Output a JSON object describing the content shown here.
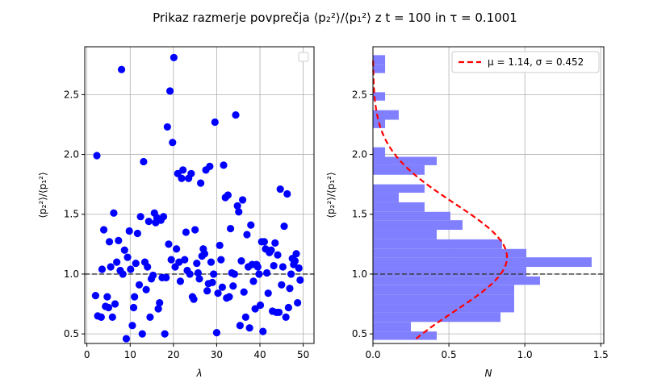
{
  "title": "Prikaz razmerje povprečja ⟨p₂²⟩/⟨p₁²⟩  z t = 100 in τ = 0.1001",
  "chart_data": [
    {
      "type": "scatter",
      "xlabel": "λ",
      "ylabel": "⟨p₂²⟩/⟨p₁²⟩",
      "xlim": [
        -0.5,
        52.5
      ],
      "ylim": [
        0.42,
        2.9
      ],
      "xticks": [
        "0",
        "10",
        "20",
        "30",
        "40",
        "50"
      ],
      "yticks": [
        "0.5",
        "1.0",
        "1.5",
        "2.0",
        "2.5"
      ],
      "grid": true,
      "legend": "top-right (empty box)",
      "reference_line": {
        "y": 1.0,
        "style": "dashed",
        "color": "#333333"
      },
      "marker_color": "#0000ff",
      "points": [
        [
          2.0,
          0.82
        ],
        [
          2.3,
          1.99
        ],
        [
          2.5,
          0.65
        ],
        [
          3.3,
          0.64
        ],
        [
          3.5,
          1.04
        ],
        [
          3.9,
          1.37
        ],
        [
          4.3,
          0.73
        ],
        [
          4.7,
          0.81
        ],
        [
          5.0,
          0.72
        ],
        [
          5.2,
          1.27
        ],
        [
          5.5,
          1.06
        ],
        [
          5.9,
          0.64
        ],
        [
          6.2,
          1.51
        ],
        [
          6.5,
          0.75
        ],
        [
          6.9,
          1.1
        ],
        [
          7.3,
          1.28
        ],
        [
          7.7,
          1.03
        ],
        [
          8.0,
          2.71
        ],
        [
          8.3,
          1.0
        ],
        [
          8.7,
          1.2
        ],
        [
          9.1,
          0.46
        ],
        [
          9.4,
          1.14
        ],
        [
          9.8,
          1.36
        ],
        [
          10.1,
          1.04
        ],
        [
          10.5,
          0.57
        ],
        [
          10.8,
          0.72
        ],
        [
          11.0,
          0.81
        ],
        [
          11.3,
          1.09
        ],
        [
          11.7,
          1.34
        ],
        [
          12.1,
          0.91
        ],
        [
          12.4,
          1.48
        ],
        [
          12.8,
          0.5
        ],
        [
          13.1,
          1.94
        ],
        [
          13.4,
          1.1
        ],
        [
          13.7,
          0.87
        ],
        [
          14.0,
          1.06
        ],
        [
          14.3,
          1.44
        ],
        [
          14.6,
          0.64
        ],
        [
          14.9,
          0.96
        ],
        [
          15.3,
          0.99
        ],
        [
          15.6,
          1.51
        ],
        [
          15.9,
          1.43
        ],
        [
          16.2,
          1.47
        ],
        [
          16.5,
          0.71
        ],
        [
          16.8,
          0.76
        ],
        [
          17.1,
          1.45
        ],
        [
          17.4,
          0.97
        ],
        [
          17.7,
          1.48
        ],
        [
          18.0,
          0.5
        ],
        [
          18.3,
          0.97
        ],
        [
          18.6,
          2.23
        ],
        [
          18.9,
          1.25
        ],
        [
          19.2,
          2.53
        ],
        [
          19.5,
          1.12
        ],
        [
          19.8,
          2.1
        ],
        [
          20.1,
          2.81
        ],
        [
          20.4,
          1.06
        ],
        [
          20.7,
          1.21
        ],
        [
          21.0,
          1.84
        ],
        [
          21.3,
          1.1
        ],
        [
          21.6,
          0.94
        ],
        [
          21.9,
          1.8
        ],
        [
          22.2,
          1.87
        ],
        [
          22.6,
          1.12
        ],
        [
          22.9,
          1.35
        ],
        [
          23.2,
          1.03
        ],
        [
          23.5,
          1.8
        ],
        [
          23.8,
          1.0
        ],
        [
          24.1,
          1.84
        ],
        [
          24.4,
          0.81
        ],
        [
          24.7,
          0.79
        ],
        [
          25.0,
          1.37
        ],
        [
          25.4,
          1.09
        ],
        [
          25.7,
          1.01
        ],
        [
          26.0,
          0.96
        ],
        [
          26.3,
          1.76
        ],
        [
          26.6,
          1.15
        ],
        [
          26.9,
          1.21
        ],
        [
          27.2,
          1.17
        ],
        [
          27.5,
          1.87
        ],
        [
          27.8,
          0.86
        ],
        [
          28.1,
          0.92
        ],
        [
          28.4,
          1.9
        ],
        [
          28.7,
          1.1
        ],
        [
          29.0,
          0.93
        ],
        [
          29.3,
          1.0
        ],
        [
          29.6,
          2.27
        ],
        [
          30.0,
          0.51
        ],
        [
          30.3,
          0.84
        ],
        [
          30.7,
          1.24
        ],
        [
          31.0,
          1.12
        ],
        [
          31.3,
          0.89
        ],
        [
          31.6,
          1.91
        ],
        [
          32.0,
          1.64
        ],
        [
          32.3,
          0.8
        ],
        [
          32.6,
          1.66
        ],
        [
          32.9,
          0.81
        ],
        [
          33.2,
          1.38
        ],
        [
          33.5,
          1.01
        ],
        [
          33.8,
          0.9
        ],
        [
          34.1,
          1.0
        ],
        [
          34.4,
          2.33
        ],
        [
          34.8,
          1.57
        ],
        [
          35.1,
          1.52
        ],
        [
          35.4,
          0.57
        ],
        [
          35.7,
          1.11
        ],
        [
          36.0,
          1.62
        ],
        [
          36.3,
          0.85
        ],
        [
          36.7,
          0.64
        ],
        [
          37.0,
          1.33
        ],
        [
          37.3,
          1.06
        ],
        [
          37.6,
          0.55
        ],
        [
          37.9,
          1.41
        ],
        [
          38.2,
          1.08
        ],
        [
          38.5,
          0.94
        ],
        [
          38.9,
          0.71
        ],
        [
          39.2,
          1.08
        ],
        [
          39.5,
          1.06
        ],
        [
          39.8,
          1.0
        ],
        [
          40.1,
          0.74
        ],
        [
          40.4,
          1.27
        ],
        [
          40.7,
          0.52
        ],
        [
          41.0,
          1.27
        ],
        [
          41.3,
          1.21
        ],
        [
          41.6,
          1.01
        ],
        [
          41.9,
          0.84
        ],
        [
          42.2,
          1.18
        ],
        [
          42.6,
          1.2
        ],
        [
          42.9,
          0.69
        ],
        [
          43.2,
          1.07
        ],
        [
          43.5,
          1.26
        ],
        [
          43.8,
          0.68
        ],
        [
          44.1,
          1.16
        ],
        [
          44.4,
          0.68
        ],
        [
          44.7,
          1.71
        ],
        [
          45.0,
          0.91
        ],
        [
          45.3,
          1.06
        ],
        [
          45.6,
          1.4
        ],
        [
          46.0,
          0.64
        ],
        [
          46.3,
          1.67
        ],
        [
          46.6,
          0.72
        ],
        [
          46.9,
          0.88
        ],
        [
          47.2,
          1.0
        ],
        [
          47.5,
          1.13
        ],
        [
          47.8,
          1.08
        ],
        [
          48.1,
          1.11
        ],
        [
          48.4,
          1.17
        ],
        [
          48.7,
          0.76
        ],
        [
          49.0,
          1.05
        ],
        [
          49.3,
          0.95
        ]
      ]
    },
    {
      "type": "bar",
      "orientation": "horizontal",
      "xlabel": "N",
      "ylabel": "⟨p₂²⟩/⟨p₁²⟩",
      "xlim": [
        0,
        1.52
      ],
      "ylim": [
        0.42,
        2.9
      ],
      "xticks": [
        "0.0",
        "0.5",
        "1.0",
        "1.5"
      ],
      "yticks": [
        "0.5",
        "1.0",
        "1.5",
        "2.0",
        "2.5"
      ],
      "grid": true,
      "bar_color": "#8080ff",
      "reference_line": {
        "y": 1.0,
        "style": "dashed",
        "color": "#333333"
      },
      "bins": [
        {
          "y0": 0.45,
          "y1": 0.52,
          "value": 0.42
        },
        {
          "y0": 0.52,
          "y1": 0.6,
          "value": 0.25
        },
        {
          "y0": 0.6,
          "y1": 0.68,
          "value": 0.84
        },
        {
          "y0": 0.68,
          "y1": 0.75,
          "value": 0.93
        },
        {
          "y0": 0.75,
          "y1": 0.83,
          "value": 0.93
        },
        {
          "y0": 0.83,
          "y1": 0.91,
          "value": 0.93
        },
        {
          "y0": 0.91,
          "y1": 0.98,
          "value": 1.1
        },
        {
          "y0": 0.98,
          "y1": 1.06,
          "value": 1.01
        },
        {
          "y0": 1.06,
          "y1": 1.14,
          "value": 1.44
        },
        {
          "y0": 1.14,
          "y1": 1.21,
          "value": 1.01
        },
        {
          "y0": 1.21,
          "y1": 1.29,
          "value": 0.85
        },
        {
          "y0": 1.29,
          "y1": 1.37,
          "value": 0.42
        },
        {
          "y0": 1.37,
          "y1": 1.45,
          "value": 0.59
        },
        {
          "y0": 1.45,
          "y1": 1.52,
          "value": 0.51
        },
        {
          "y0": 1.52,
          "y1": 1.6,
          "value": 0.34
        },
        {
          "y0": 1.6,
          "y1": 1.68,
          "value": 0.17
        },
        {
          "y0": 1.68,
          "y1": 1.75,
          "value": 0.34
        },
        {
          "y0": 1.75,
          "y1": 1.83,
          "value": 0.0
        },
        {
          "y0": 1.83,
          "y1": 1.91,
          "value": 0.34
        },
        {
          "y0": 1.91,
          "y1": 1.98,
          "value": 0.42
        },
        {
          "y0": 1.98,
          "y1": 2.06,
          "value": 0.08
        },
        {
          "y0": 2.06,
          "y1": 2.14,
          "value": 0.0
        },
        {
          "y0": 2.14,
          "y1": 2.22,
          "value": 0.0
        },
        {
          "y0": 2.22,
          "y1": 2.29,
          "value": 0.08
        },
        {
          "y0": 2.29,
          "y1": 2.37,
          "value": 0.17
        },
        {
          "y0": 2.37,
          "y1": 2.45,
          "value": 0.0
        },
        {
          "y0": 2.45,
          "y1": 2.52,
          "value": 0.08
        },
        {
          "y0": 2.52,
          "y1": 2.6,
          "value": 0.0
        },
        {
          "y0": 2.6,
          "y1": 2.68,
          "value": 0.0
        },
        {
          "y0": 2.68,
          "y1": 2.75,
          "value": 0.08
        },
        {
          "y0": 2.75,
          "y1": 2.83,
          "value": 0.08
        }
      ],
      "fit": {
        "label": "μ = 1.14, σ = 0.452",
        "mu": 1.14,
        "sigma": 0.452,
        "color": "#ff0000",
        "style": "dashed",
        "y_range": [
          0.46,
          2.81
        ]
      },
      "legend": "top-right"
    }
  ]
}
